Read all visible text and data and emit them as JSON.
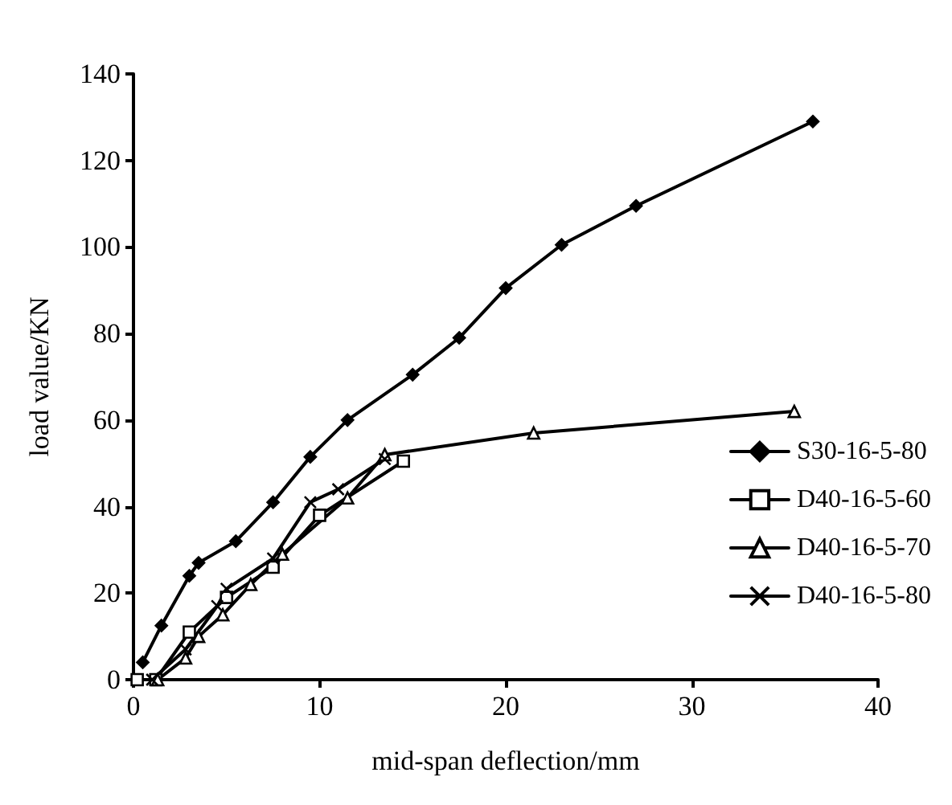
{
  "chart_data": {
    "type": "line",
    "xlabel": "mid-span deflection/mm",
    "ylabel": "load value/KN",
    "xlim": [
      0,
      40
    ],
    "xticks": [
      0,
      10,
      20,
      30,
      40
    ],
    "ylim": [
      0,
      140
    ],
    "yticks": [
      0,
      20,
      40,
      60,
      80,
      100,
      120,
      140
    ],
    "grid": false,
    "legend": "right",
    "line_style": "solid",
    "series": [
      {
        "name": "S30-16-5-80",
        "color": "#000000",
        "marker": "diamond",
        "x": [
          0.5,
          1.5,
          3,
          3.5,
          5.5,
          7.5,
          9.5,
          11.5,
          15,
          17.5,
          20,
          23,
          27,
          36.5
        ],
        "values": [
          4,
          12.5,
          24,
          27,
          32,
          41,
          51.5,
          60,
          70.5,
          79,
          90.5,
          100.5,
          109.5,
          129
        ]
      },
      {
        "name": "D40-16-5-60",
        "color": "#000000",
        "marker": "square",
        "x": [
          0.2,
          1.2,
          3,
          5,
          7.5,
          10,
          14.5
        ],
        "values": [
          0,
          0,
          11,
          19,
          26,
          38,
          50.5
        ]
      },
      {
        "name": "D40-16-5-70",
        "color": "#000000",
        "marker": "triangle",
        "x": [
          1.3,
          2.8,
          3.5,
          4.8,
          6.3,
          8,
          11.5,
          13.5,
          21.5,
          35.5
        ],
        "values": [
          0,
          5,
          10,
          15,
          22,
          29,
          42,
          52,
          57,
          62
        ]
      },
      {
        "name": "D40-16-5-80",
        "color": "#000000",
        "marker": "cross",
        "x": [
          1,
          2.8,
          4.5,
          5,
          7.5,
          9.5,
          11,
          13.5
        ],
        "values": [
          0,
          7,
          17,
          21,
          28,
          41,
          44,
          51
        ]
      }
    ]
  }
}
